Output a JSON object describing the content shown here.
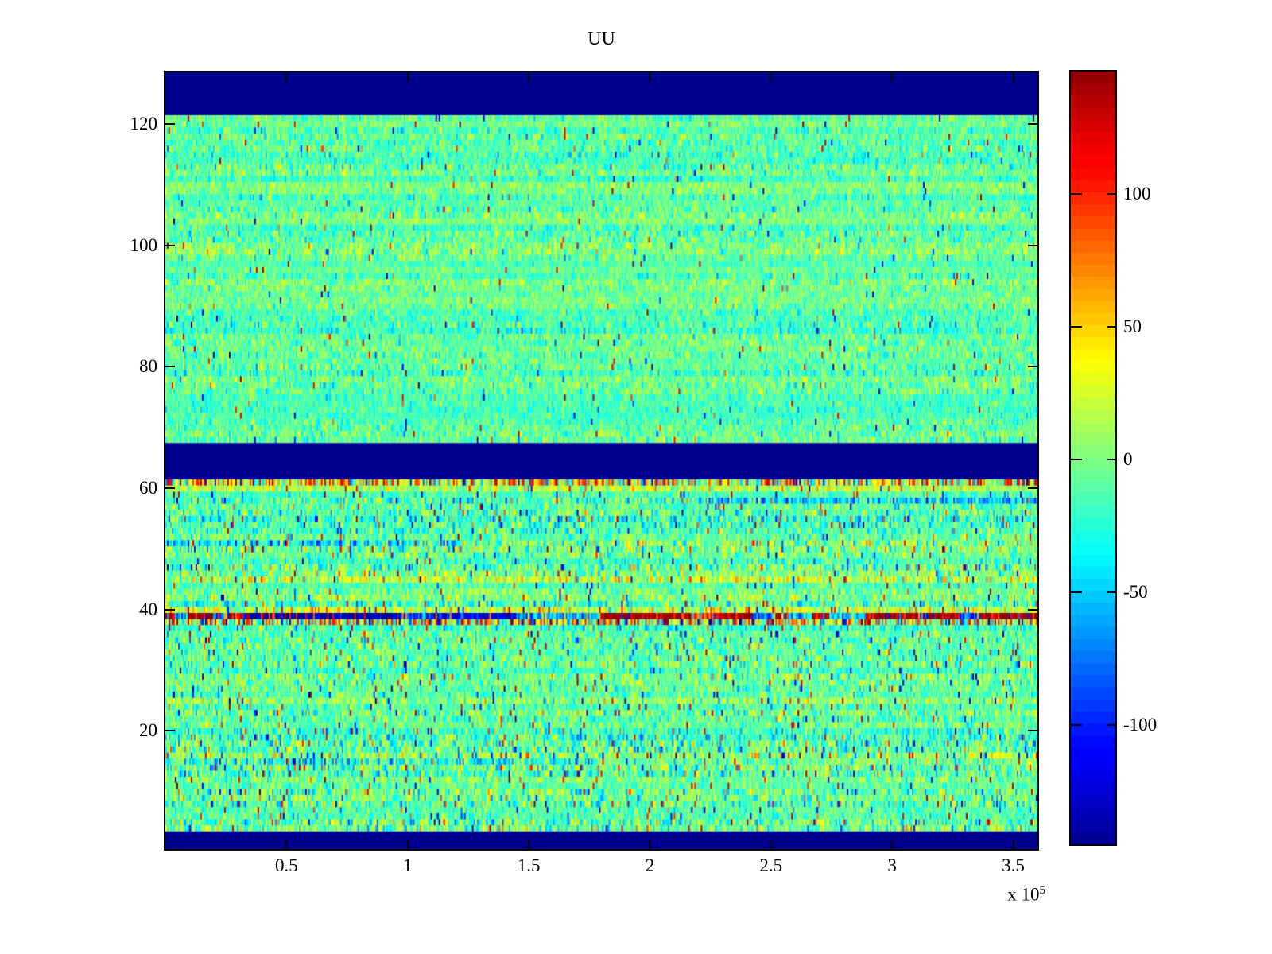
{
  "figure": {
    "title": "UU",
    "background_color": "#ffffff",
    "axis_color": "#000000",
    "dark_band_color": "#00008F"
  },
  "x_axis": {
    "ticks": [
      {
        "value": 50000,
        "label": "0.5"
      },
      {
        "value": 100000,
        "label": "1"
      },
      {
        "value": 150000,
        "label": "1.5"
      },
      {
        "value": 200000,
        "label": "2"
      },
      {
        "value": 250000,
        "label": "2.5"
      },
      {
        "value": 300000,
        "label": "3"
      },
      {
        "value": 350000,
        "label": "3.5"
      }
    ],
    "exponent_prefix": "x 10",
    "exponent": "5",
    "range": [
      0,
      360000
    ]
  },
  "y_axis": {
    "ticks": [
      {
        "value": 20,
        "label": "20"
      },
      {
        "value": 40,
        "label": "40"
      },
      {
        "value": 60,
        "label": "60"
      },
      {
        "value": 80,
        "label": "80"
      },
      {
        "value": 100,
        "label": "100"
      },
      {
        "value": 120,
        "label": "120"
      }
    ],
    "range": [
      0.5,
      128.5
    ]
  },
  "colorbar": {
    "ticks": [
      {
        "value": 100,
        "label": "100"
      },
      {
        "value": 50,
        "label": "50"
      },
      {
        "value": 0,
        "label": "0"
      },
      {
        "value": -50,
        "label": "-50"
      },
      {
        "value": -100,
        "label": "-100"
      }
    ],
    "range": [
      -145,
      146
    ],
    "bands": 64,
    "colormap": "jet"
  },
  "chart_data": {
    "type": "heatmap",
    "title": "UU",
    "colormap": "jet",
    "clim": [
      -145,
      146
    ],
    "x_range": [
      0,
      360000
    ],
    "y_range": [
      0.5,
      128.5
    ],
    "n_rows": 128,
    "n_cols": 549,
    "seed": 1337,
    "dark_value": -145,
    "dark_row_bands": [
      [
        1,
        3
      ],
      [
        62,
        67
      ],
      [
        122,
        128
      ]
    ],
    "blocks": [
      {
        "rows": [
          4,
          61
        ],
        "offset": -10,
        "sigma": 21,
        "outlier_prob": 0.035
      },
      {
        "rows": [
          68,
          121
        ],
        "offset": -9,
        "sigma": 15,
        "outlier_prob": 0.012
      }
    ],
    "row_overrides": [
      {
        "row": 61,
        "offset": 28,
        "sigma": 38,
        "outlier_prob": 0.18,
        "outlier_bias": 0.85
      },
      {
        "row": 60,
        "offset": 6,
        "sigma": 26
      },
      {
        "row": 58,
        "offset": -14,
        "sigma": 24,
        "segments": [
          {
            "x": [
              220000,
              360000
            ],
            "offset": -45,
            "sigma": 30
          }
        ]
      },
      {
        "row": 51,
        "offset": -16,
        "sigma": 28,
        "segments": [
          {
            "x": [
              0,
              120000
            ],
            "offset": -30,
            "sigma": 38
          }
        ]
      },
      {
        "row": 45,
        "offset": 14,
        "sigma": 24
      },
      {
        "row": 40,
        "offset": 20,
        "sigma": 27,
        "outlier_prob": 0.06,
        "outlier_bias": 0.8
      },
      {
        "row": 38,
        "offset": 18,
        "sigma": 46,
        "outlier_prob": 0.2,
        "outlier_bias": 0.6
      },
      {
        "row": 16,
        "offset": 8,
        "sigma": 32,
        "outlier_prob": 0.1,
        "outlier_bias": 0.5
      },
      {
        "row": 15,
        "offset": -12,
        "sigma": 26,
        "segments": [
          {
            "x": [
              0,
              180000
            ],
            "offset": -28,
            "sigma": 30
          }
        ]
      }
    ],
    "anomaly_rows": [
      {
        "row": 39,
        "noise_sigma": 25,
        "flip_prob": 0.12,
        "segments": [
          [
            0,
            4000,
            130
          ],
          [
            4000,
            9000,
            -70
          ],
          [
            9000,
            20000,
            135
          ],
          [
            20000,
            26000,
            -90
          ],
          [
            26000,
            35000,
            120
          ],
          [
            35000,
            97000,
            -140
          ],
          [
            97000,
            115000,
            -85
          ],
          [
            115000,
            145000,
            -125
          ],
          [
            145000,
            180000,
            -60
          ],
          [
            180000,
            217000,
            140
          ],
          [
            217000,
            228000,
            90
          ],
          [
            228000,
            242000,
            135
          ],
          [
            242000,
            251000,
            -65
          ],
          [
            251000,
            257000,
            110
          ],
          [
            257000,
            267000,
            -55
          ],
          [
            267000,
            274000,
            125
          ],
          [
            274000,
            289000,
            -50
          ],
          [
            289000,
            311000,
            140
          ],
          [
            311000,
            315000,
            -100
          ],
          [
            315000,
            328000,
            145
          ],
          [
            328000,
            336000,
            -90
          ],
          [
            336000,
            360000,
            140
          ]
        ]
      }
    ]
  }
}
